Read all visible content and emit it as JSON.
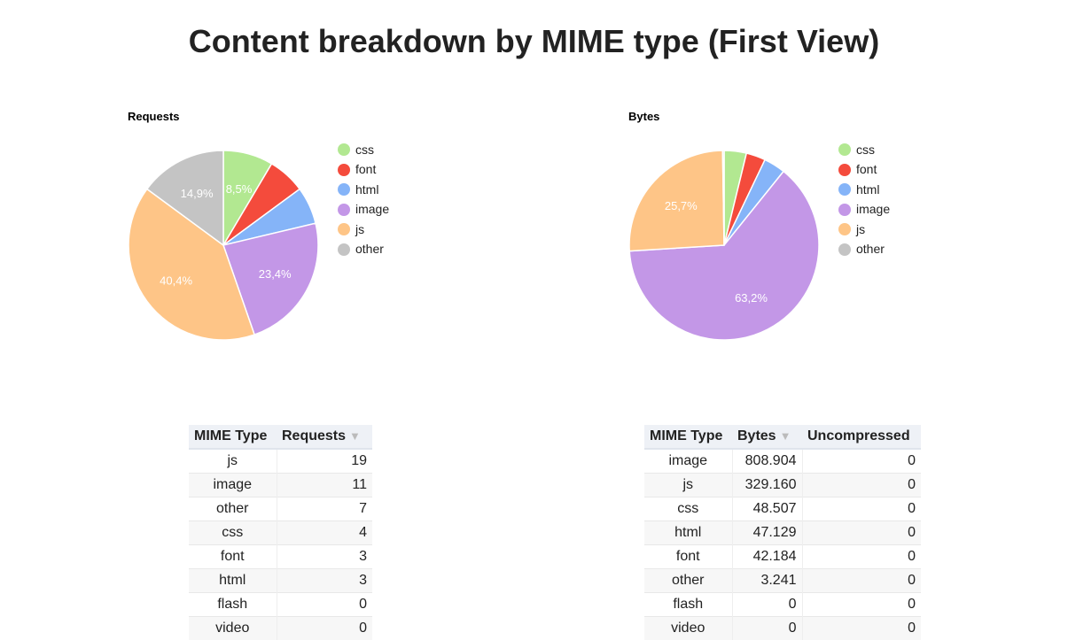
{
  "page_title": "Content breakdown by MIME type (First View)",
  "colors": {
    "css": "#b2e891",
    "font": "#f44b3c",
    "html": "#85b4f8",
    "image": "#c397e7",
    "js": "#fec587",
    "other": "#c4c4c4"
  },
  "legend": [
    "css",
    "font",
    "html",
    "image",
    "js",
    "other"
  ],
  "chart_data": [
    {
      "type": "pie",
      "title": "Requests",
      "slices": [
        {
          "label": "css",
          "value": 4,
          "percent_label": "8,5%"
        },
        {
          "label": "font",
          "value": 3,
          "percent_label": ""
        },
        {
          "label": "html",
          "value": 3,
          "percent_label": ""
        },
        {
          "label": "image",
          "value": 11,
          "percent_label": "23,4%"
        },
        {
          "label": "js",
          "value": 19,
          "percent_label": "40,4%"
        },
        {
          "label": "other",
          "value": 7,
          "percent_label": "14,9%"
        }
      ],
      "legend_position": "right"
    },
    {
      "type": "pie",
      "title": "Bytes",
      "slices": [
        {
          "label": "css",
          "value": 48507,
          "percent_label": ""
        },
        {
          "label": "font",
          "value": 42184,
          "percent_label": ""
        },
        {
          "label": "html",
          "value": 47129,
          "percent_label": ""
        },
        {
          "label": "image",
          "value": 808904,
          "percent_label": "63,2%"
        },
        {
          "label": "js",
          "value": 329160,
          "percent_label": "25,7%"
        },
        {
          "label": "other",
          "value": 3241,
          "percent_label": ""
        }
      ],
      "legend_position": "right"
    }
  ],
  "requests_table": {
    "headers": [
      "MIME Type",
      "Requests"
    ],
    "sort_indicator": "▼",
    "rows": [
      [
        "js",
        "19"
      ],
      [
        "image",
        "11"
      ],
      [
        "other",
        "7"
      ],
      [
        "css",
        "4"
      ],
      [
        "font",
        "3"
      ],
      [
        "html",
        "3"
      ],
      [
        "flash",
        "0"
      ],
      [
        "video",
        "0"
      ]
    ]
  },
  "bytes_table": {
    "headers": [
      "MIME Type",
      "Bytes",
      "Uncompressed"
    ],
    "sort_indicator": "▼",
    "rows": [
      [
        "image",
        "808.904",
        "0"
      ],
      [
        "js",
        "329.160",
        "0"
      ],
      [
        "css",
        "48.507",
        "0"
      ],
      [
        "html",
        "47.129",
        "0"
      ],
      [
        "font",
        "42.184",
        "0"
      ],
      [
        "other",
        "3.241",
        "0"
      ],
      [
        "flash",
        "0",
        "0"
      ],
      [
        "video",
        "0",
        "0"
      ]
    ]
  }
}
